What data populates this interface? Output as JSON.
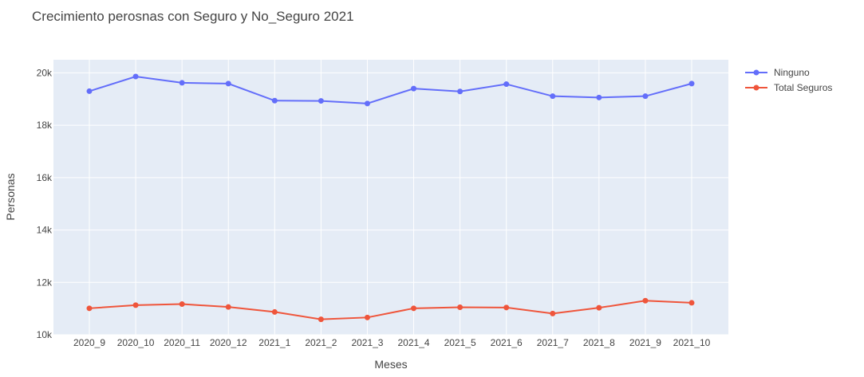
{
  "chart_data": {
    "type": "line",
    "title": "Crecimiento perosnas con  Seguro y No_Seguro 2021",
    "xlabel": "Meses",
    "ylabel": "Personas",
    "categories": [
      "2020_9",
      "2020_10",
      "2020_11",
      "2020_12",
      "2021_1",
      "2021_2",
      "2021_3",
      "2021_4",
      "2021_5",
      "2021_6",
      "2021_7",
      "2021_8",
      "2021_9",
      "2021_10"
    ],
    "ylim": [
      10000,
      20500
    ],
    "yticks": [
      10000,
      12000,
      14000,
      16000,
      18000,
      20000
    ],
    "ytick_labels": [
      "10k",
      "12k",
      "14k",
      "16k",
      "18k",
      "20k"
    ],
    "grid": true,
    "legend_position": "top-right",
    "series": [
      {
        "name": "Ninguno",
        "color": "#636efa",
        "values": [
          19300,
          19860,
          19620,
          19590,
          18940,
          18930,
          18830,
          19400,
          19290,
          19570,
          19110,
          19060,
          19110,
          19590
        ]
      },
      {
        "name": "Total Seguros",
        "color": "#ef553b",
        "values": [
          11010,
          11130,
          11170,
          11060,
          10870,
          10590,
          10660,
          11010,
          11050,
          11040,
          10810,
          11030,
          11300,
          11220
        ]
      }
    ]
  }
}
